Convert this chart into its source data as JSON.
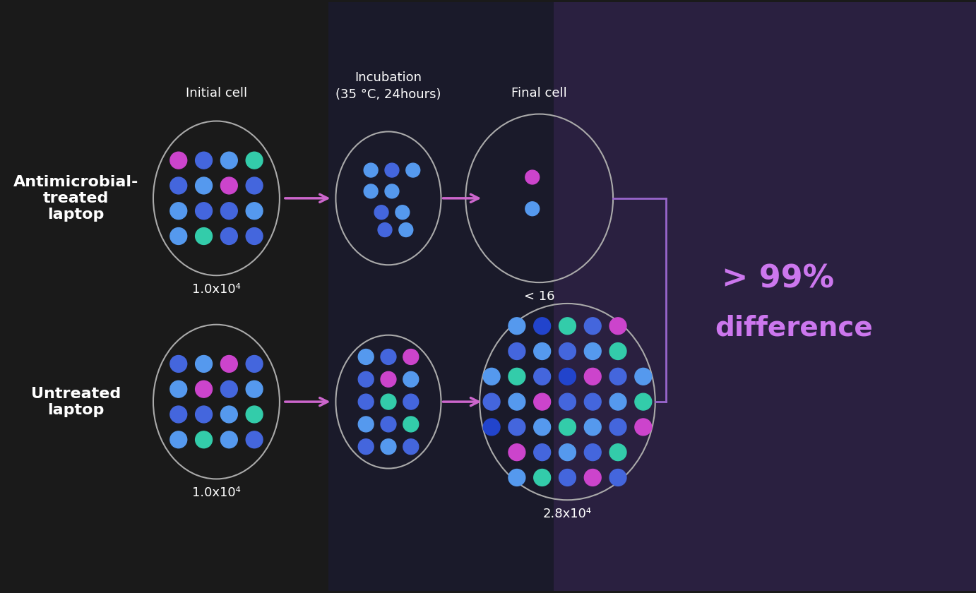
{
  "bg_left": "#1a1a1a",
  "bg_middle": "#1e1e2e",
  "bg_right": "#2a2040",
  "circle_color": "#aaaaaa",
  "arrow_color": "#cc66cc",
  "text_color_white": "#ffffff",
  "text_color_purple": "#cc77ee",
  "bracket_color": "#9966cc",
  "title_initial": "Initial cell",
  "title_incubation": "Incubation\n(35 °C, 24hours)",
  "title_final": "Final cell",
  "label_treated": "Antimicrobial-\ntreated\nlaptop",
  "label_untreated": "Untreated\nlaptop",
  "label_treated_initial": "1.0x10⁴",
  "label_treated_final": "< 16",
  "label_untreated_initial": "1.0x10⁴",
  "label_untreated_final": "2.8x10⁴",
  "diff_text_line1": "> 99%",
  "diff_text_line2": "difference",
  "dot_colors_blue_dark": "#3333cc",
  "dot_colors_blue_mid": "#4477dd",
  "dot_colors_blue_light": "#55aadd",
  "dot_colors_cyan": "#44ddbb",
  "dot_colors_pink": "#cc44cc",
  "dot_colors_purple": "#7744cc"
}
